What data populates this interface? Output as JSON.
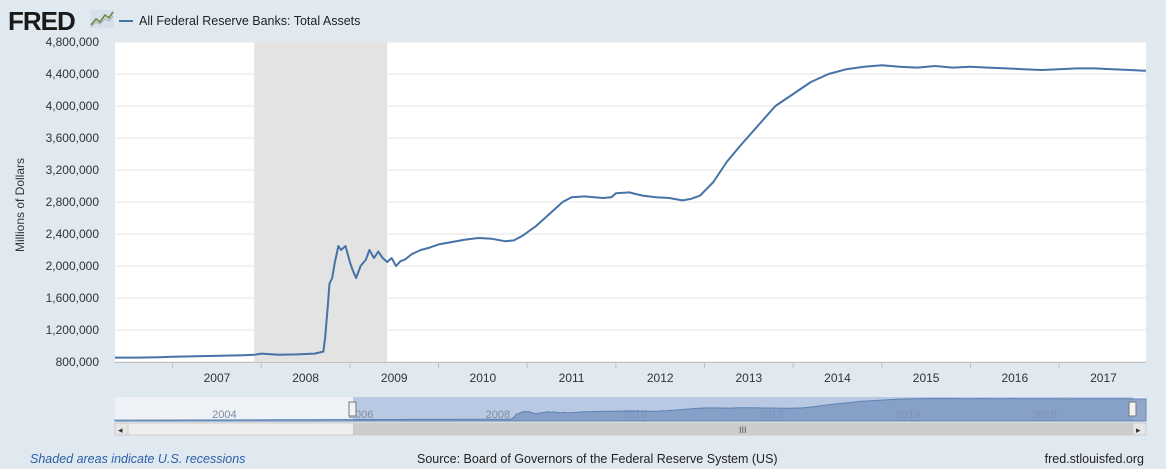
{
  "header": {
    "logo_text": "FRED",
    "logo_icon": "line-chart-icon",
    "series_label": "All Federal Reserve Banks: Total Assets",
    "series_color": "#4572a7"
  },
  "footer": {
    "recession_note": "Shaded areas indicate U.S. recessions",
    "source": "Source: Board of Governors of the Federal Reserve System (US)",
    "site": "fred.stlouisfed.org"
  },
  "navigator": {
    "labels": [
      "2004",
      "2006",
      "2008",
      "2010",
      "2012",
      "2014",
      "2016"
    ],
    "scroll_grip": "III",
    "left_arrow": "◂",
    "right_arrow": "▸"
  },
  "chart_data": {
    "type": "line",
    "title": "",
    "xlabel": "",
    "ylabel": "Millions of Dollars",
    "ylim": [
      800000,
      4800000
    ],
    "yticks": [
      800000,
      1200000,
      1600000,
      2000000,
      2400000,
      2800000,
      3200000,
      3600000,
      4000000,
      4400000,
      4800000
    ],
    "ytick_labels": [
      "800,000",
      "1,200,000",
      "1,600,000",
      "2,000,000",
      "2,400,000",
      "2,800,000",
      "3,200,000",
      "3,600,000",
      "4,000,000",
      "4,400,000",
      "4,800,000"
    ],
    "xlim": [
      2006.35,
      2017.98
    ],
    "xticks": [
      2007,
      2008,
      2009,
      2010,
      2011,
      2012,
      2013,
      2014,
      2015,
      2016,
      2017
    ],
    "xtick_labels": [
      "2007",
      "2008",
      "2009",
      "2010",
      "2011",
      "2012",
      "2013",
      "2014",
      "2015",
      "2016",
      "2017"
    ],
    "grid": true,
    "recessions": [
      [
        2007.92,
        2009.42
      ]
    ],
    "series": [
      {
        "name": "All Federal Reserve Banks: Total Assets",
        "color": "#4572a7",
        "x": [
          2006.35,
          2006.6,
          2006.85,
          2007.0,
          2007.2,
          2007.4,
          2007.6,
          2007.8,
          2007.92,
          2008.0,
          2008.2,
          2008.4,
          2008.6,
          2008.7,
          2008.72,
          2008.75,
          2008.77,
          2008.8,
          2008.83,
          2008.87,
          2008.9,
          2008.95,
          2009.0,
          2009.03,
          2009.07,
          2009.12,
          2009.18,
          2009.22,
          2009.27,
          2009.32,
          2009.37,
          2009.42,
          2009.47,
          2009.52,
          2009.57,
          2009.62,
          2009.7,
          2009.8,
          2009.9,
          2010.0,
          2010.15,
          2010.3,
          2010.45,
          2010.6,
          2010.75,
          2010.85,
          2010.95,
          2011.1,
          2011.25,
          2011.4,
          2011.5,
          2011.65,
          2011.85,
          2011.95,
          2012.0,
          2012.15,
          2012.3,
          2012.45,
          2012.6,
          2012.75,
          2012.85,
          2012.95,
          2013.1,
          2013.25,
          2013.4,
          2013.6,
          2013.8,
          2014.0,
          2014.2,
          2014.4,
          2014.6,
          2014.8,
          2015.0,
          2015.2,
          2015.4,
          2015.6,
          2015.8,
          2016.0,
          2016.2,
          2016.4,
          2016.6,
          2016.8,
          2017.0,
          2017.2,
          2017.4,
          2017.6,
          2017.8,
          2017.98
        ],
        "y": [
          855000,
          855000,
          860000,
          865000,
          870000,
          875000,
          880000,
          885000,
          890000,
          905000,
          890000,
          895000,
          905000,
          930000,
          1100000,
          1500000,
          1780000,
          1850000,
          2050000,
          2250000,
          2200000,
          2250000,
          2050000,
          1950000,
          1850000,
          2000000,
          2080000,
          2200000,
          2100000,
          2180000,
          2100000,
          2050000,
          2100000,
          2000000,
          2060000,
          2080000,
          2150000,
          2200000,
          2230000,
          2270000,
          2300000,
          2330000,
          2350000,
          2340000,
          2310000,
          2320000,
          2380000,
          2500000,
          2650000,
          2800000,
          2860000,
          2870000,
          2850000,
          2860000,
          2910000,
          2920000,
          2880000,
          2860000,
          2850000,
          2820000,
          2840000,
          2880000,
          3050000,
          3300000,
          3500000,
          3750000,
          4000000,
          4150000,
          4300000,
          4400000,
          4460000,
          4490000,
          4510000,
          4490000,
          4480000,
          4500000,
          4480000,
          4490000,
          4480000,
          4470000,
          4460000,
          4450000,
          4460000,
          4470000,
          4470000,
          4460000,
          4450000,
          4440000
        ]
      }
    ]
  }
}
